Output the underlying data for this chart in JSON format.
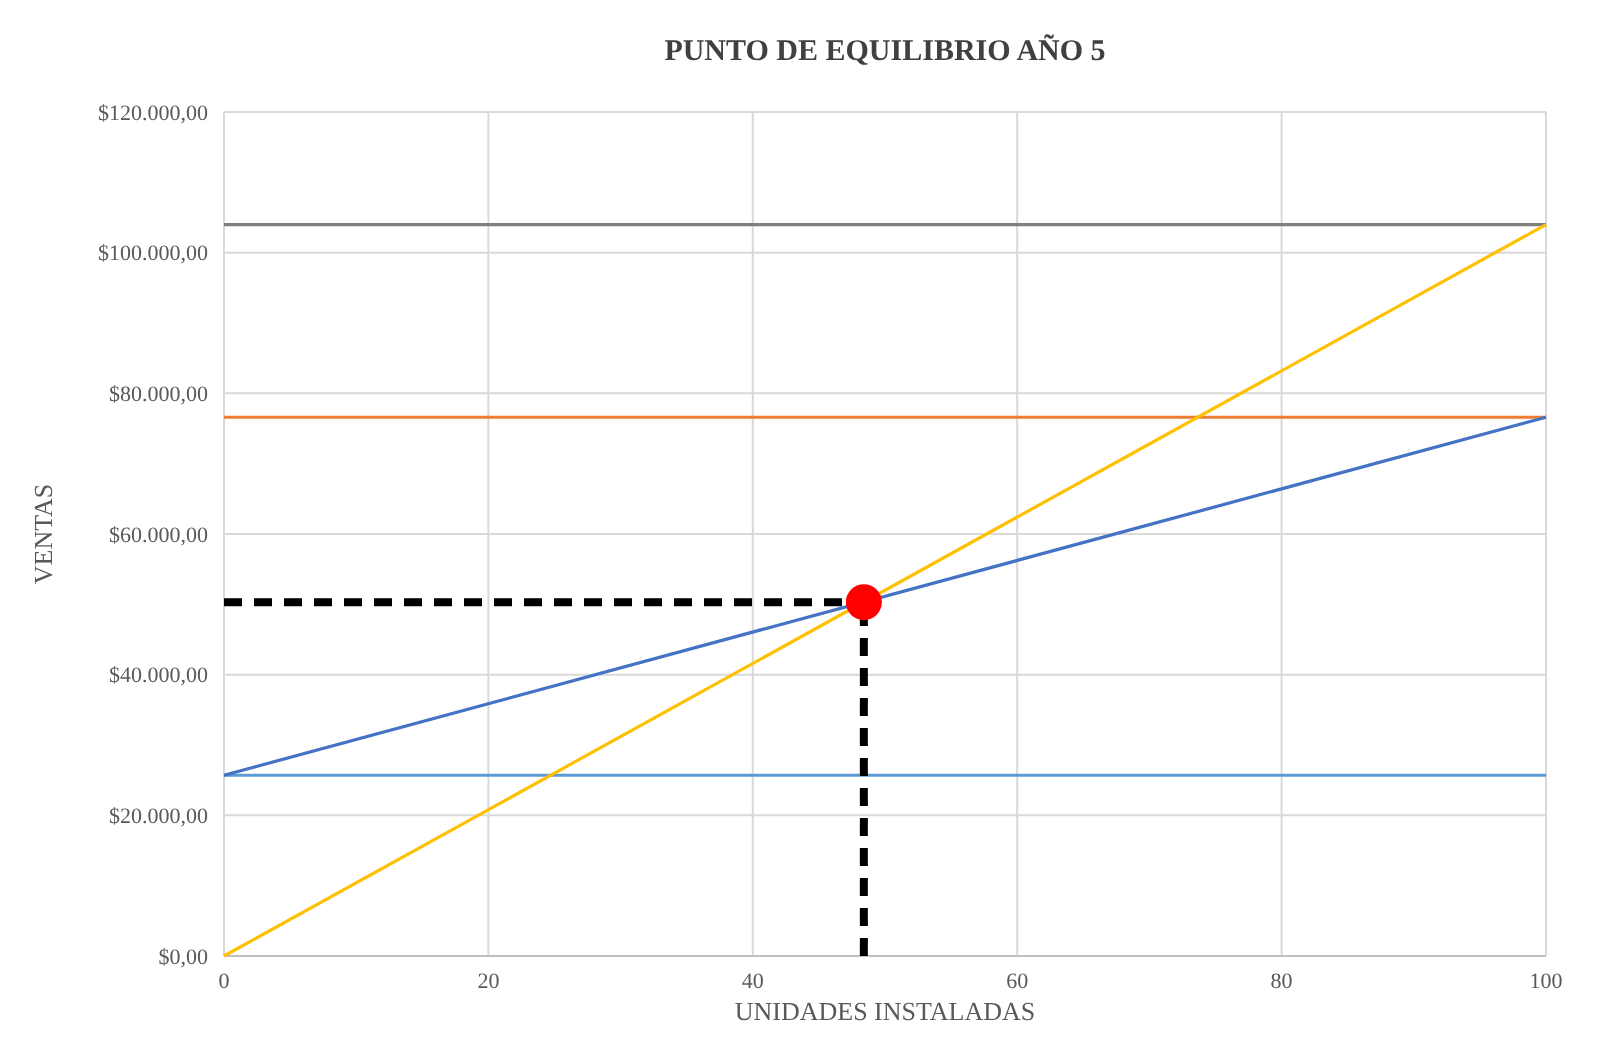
{
  "chart_data": {
    "type": "line",
    "title": "PUNTO DE EQUILIBRIO AÑO 5",
    "xlabel": "UNIDADES INSTALADAS",
    "ylabel": "VENTAS",
    "xlim": [
      0,
      100
    ],
    "xticks": [
      0,
      20,
      40,
      60,
      80,
      100
    ],
    "ylim": [
      0,
      120000
    ],
    "yticks": [
      {
        "value": 0,
        "label": "$0,00"
      },
      {
        "value": 20000,
        "label": "$20.000,00"
      },
      {
        "value": 40000,
        "label": "$40.000,00"
      },
      {
        "value": 60000,
        "label": "$60.000,00"
      },
      {
        "value": 80000,
        "label": "$80.000,00"
      },
      {
        "value": 100000,
        "label": "$100.000,00"
      },
      {
        "value": 120000,
        "label": "$120.000,00"
      }
    ],
    "grid": true,
    "marker": "none",
    "line_style": "solid",
    "series": [
      {
        "color": "#5b9bd5",
        "x": [
          0,
          100
        ],
        "values": [
          25700,
          25700
        ]
      },
      {
        "color": "#ed7d31",
        "x": [
          0,
          100
        ],
        "values": [
          76600,
          76600
        ]
      },
      {
        "color": "#7f7f7f",
        "x": [
          0,
          100
        ],
        "values": [
          104000,
          104000
        ]
      },
      {
        "color": "#4472c4",
        "x": [
          0,
          100
        ],
        "values": [
          25700,
          76600
        ]
      },
      {
        "color": "#ffc000",
        "x": [
          0,
          100
        ],
        "values": [
          0,
          104000
        ]
      },
      {
        "color": "#000000",
        "x": [
          0,
          48.4
        ],
        "values": [
          50300,
          50300
        ],
        "line_style": "dashed"
      },
      {
        "color": "#000000",
        "x": [
          48.4,
          48.4
        ],
        "values": [
          0,
          50300
        ],
        "line_style": "dashed"
      },
      {
        "type": "scatter",
        "color": "#ff0000",
        "x": [
          48.4
        ],
        "values": [
          50300
        ],
        "marker": "circle"
      }
    ]
  }
}
